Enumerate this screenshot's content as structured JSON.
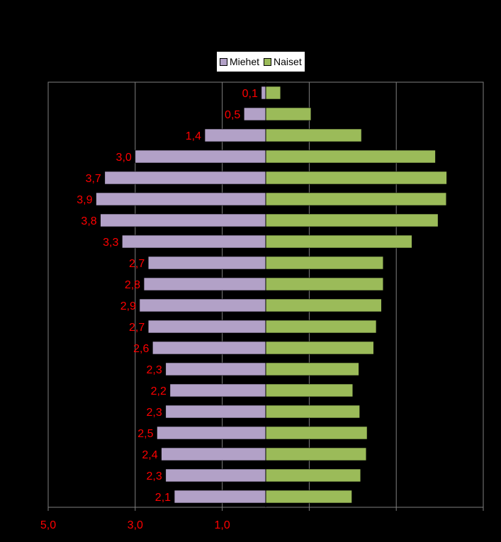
{
  "chart_data": {
    "type": "bar",
    "orientation": "horizontal",
    "layout": "population-pyramid",
    "legend_position": "top",
    "legend": [
      "Miehet",
      "Naiset"
    ],
    "series": [
      {
        "name": "Miehet",
        "color": "#b2a1c7",
        "values": [
          0.1,
          0.5,
          1.4,
          3.0,
          3.7,
          3.9,
          3.8,
          3.3,
          2.7,
          2.8,
          2.9,
          2.7,
          2.6,
          2.3,
          2.2,
          2.3,
          2.5,
          2.4,
          2.3,
          2.1
        ],
        "labels": [
          "0,1",
          "0,5",
          "1,4",
          "3,0",
          "3,7",
          "3,9",
          "3,8",
          "3,3",
          "2,7",
          "2,8",
          "2,9",
          "2,7",
          "2,6",
          "2,3",
          "2,2",
          "2,3",
          "2,5",
          "2,4",
          "2,3",
          "2,1"
        ]
      },
      {
        "name": "Naiset",
        "color": "#9bbb59",
        "values": [
          0.34,
          1.04,
          2.2,
          3.9,
          4.16,
          4.15,
          3.96,
          3.36,
          2.7,
          2.7,
          2.66,
          2.54,
          2.48,
          2.14,
          2.0,
          2.16,
          2.33,
          2.31,
          2.18,
          1.98
        ]
      }
    ],
    "xlim": [
      -5,
      5
    ],
    "x_ticks": [
      -5,
      -3,
      -1,
      1,
      3,
      5
    ],
    "x_tick_labels": [
      "5,0",
      "3,0",
      "1,0",
      "",
      "",
      ""
    ],
    "grid": "vertical",
    "label_color": "#ff0000"
  }
}
